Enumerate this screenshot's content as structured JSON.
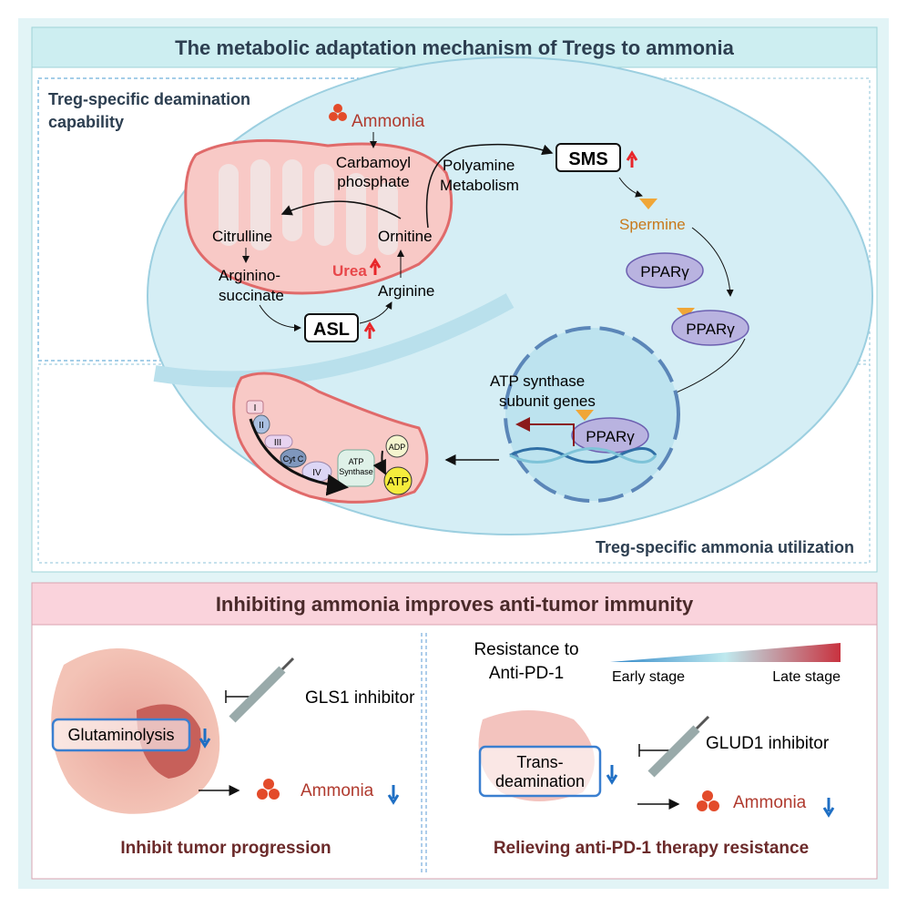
{
  "top_panel": {
    "title": "The metabolic adaptation mechanism of Tregs to ammonia",
    "section_deamination": "Treg-specific deamination",
    "section_deamination_2": "capability",
    "section_utilization": "Treg-specific ammonia utilization",
    "urea_cycle": {
      "ammonia": "Ammonia",
      "carbamoyl_1": "Carbamoyl",
      "carbamoyl_2": "phosphate",
      "citrulline": "Citrulline",
      "ornitine": "Ornitine",
      "argininosuccinate_1": "Arginino-",
      "argininosuccinate_2": "succinate",
      "urea": "Urea",
      "arginine": "Arginine",
      "asl": "ASL"
    },
    "polyamine_1": "Polyamine",
    "polyamine_2": "Metabolism",
    "sms": "SMS",
    "spermine": "Spermine",
    "pparg": "PPARγ",
    "atp_genes_1": "ATP synthase",
    "atp_genes_2": "subunit genes",
    "etc": {
      "c1": "I",
      "c2": "II",
      "c3": "III",
      "cytc": "Cyt C",
      "c4": "IV",
      "atp_synthase_1": "ATP",
      "atp_synthase_2": "Synthase",
      "adp": "ADP",
      "atp": "ATP"
    }
  },
  "bottom_panel": {
    "title": "Inhibiting ammonia improves anti-tumor immunity",
    "left": {
      "inhibitor": "GLS1 inhibitor",
      "process": "Glutaminolysis",
      "ammonia": "Ammonia",
      "caption": "Inhibit tumor progression"
    },
    "right": {
      "resistance_1": "Resistance to",
      "resistance_2": "Anti-PD-1",
      "early": "Early stage",
      "late": "Late stage",
      "inhibitor": "GLUD1 inhibitor",
      "process_1": "Trans-",
      "process_2": "deamination",
      "ammonia": "Ammonia",
      "caption": "Relieving anti-PD-1 therapy resistance"
    }
  },
  "colors": {
    "up_arrow": "#e8262a",
    "down_arrow": "#1f6fc4",
    "ammonia_text": "#b03a2e",
    "spermine": "#c8791a",
    "caption": "#6b2a2a",
    "top_header": "#cdeef1",
    "bottom_header": "#fad3dc"
  }
}
